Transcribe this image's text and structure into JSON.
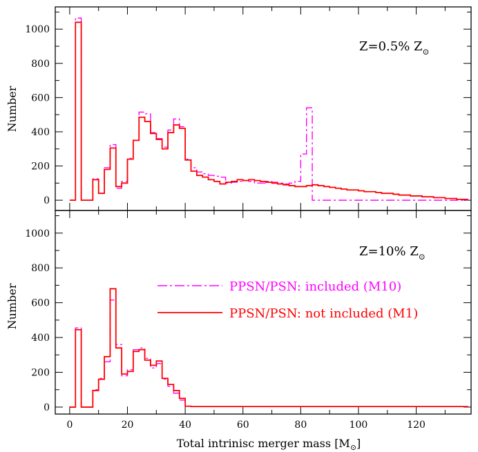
{
  "chart_data": [
    {
      "type": "line",
      "panel": "top",
      "annotation": "Z=0.5% Z⊙",
      "annotation_main": "Z=0.5% Z",
      "annotation_sub": "⊙",
      "ylabel": "Number",
      "xlim": [
        -5,
        139
      ],
      "ylim": [
        -60,
        1130
      ],
      "yticks": [
        0,
        200,
        400,
        600,
        800,
        1000
      ],
      "xticks": [
        0,
        20,
        40,
        60,
        80,
        100,
        120
      ],
      "bin_edges": [
        0,
        2,
        4,
        6,
        8,
        10,
        12,
        14,
        16,
        18,
        20,
        22,
        24,
        26,
        28,
        30,
        32,
        34,
        36,
        38,
        40,
        42,
        44,
        46,
        48,
        50,
        52,
        54,
        56,
        58,
        60,
        62,
        64,
        66,
        68,
        70,
        72,
        74,
        76,
        78,
        80,
        82,
        84,
        86,
        88,
        90,
        92,
        94,
        96,
        98,
        100,
        102,
        104,
        106,
        108,
        110,
        112,
        114,
        116,
        118,
        120,
        122,
        124,
        126,
        128,
        130,
        132,
        134,
        136,
        138
      ],
      "series": [
        {
          "name": "PPSN/PSN: included (M10)",
          "color": "#ff00ff",
          "style": "dashdot",
          "values": [
            0,
            1065,
            0,
            0,
            125,
            40,
            190,
            325,
            70,
            110,
            245,
            350,
            515,
            505,
            395,
            360,
            310,
            410,
            475,
            430,
            240,
            190,
            165,
            155,
            145,
            140,
            135,
            100,
            105,
            110,
            115,
            110,
            100,
            100,
            110,
            105,
            100,
            95,
            100,
            110,
            270,
            540,
            0,
            0,
            0,
            0,
            0,
            0,
            0,
            0,
            0,
            0,
            0,
            0,
            0,
            0,
            0,
            0,
            0,
            0,
            0,
            0,
            0,
            0,
            0,
            0,
            0,
            0,
            0
          ]
        },
        {
          "name": "PPSN/PSN: not included (M1)",
          "color": "#ff0000",
          "style": "solid",
          "values": [
            0,
            1040,
            0,
            0,
            120,
            40,
            180,
            305,
            80,
            100,
            240,
            350,
            485,
            460,
            390,
            355,
            300,
            395,
            440,
            420,
            235,
            170,
            145,
            135,
            120,
            110,
            95,
            105,
            110,
            120,
            115,
            120,
            115,
            110,
            105,
            100,
            95,
            90,
            85,
            80,
            80,
            85,
            90,
            85,
            80,
            75,
            70,
            65,
            60,
            60,
            55,
            50,
            50,
            45,
            40,
            40,
            35,
            30,
            30,
            25,
            25,
            20,
            20,
            15,
            15,
            10,
            10,
            5,
            5
          ]
        }
      ]
    },
    {
      "type": "line",
      "panel": "bottom",
      "annotation": "Z=10% Z⊙",
      "annotation_main": "Z=10% Z",
      "annotation_sub": "⊙",
      "ylabel": "Number",
      "xlabel": "Total intrinisc merger mass [M⊙]",
      "xlabel_main": "Total intrinisc merger mass [M",
      "xlabel_sub": "⊙",
      "xlabel_end": "]",
      "xlim": [
        -5,
        139
      ],
      "ylim": [
        -40,
        1130
      ],
      "yticks": [
        0,
        200,
        400,
        600,
        800,
        1000
      ],
      "xticks": [
        0,
        20,
        40,
        60,
        80,
        100,
        120
      ],
      "bin_edges": [
        0,
        2,
        4,
        6,
        8,
        10,
        12,
        14,
        16,
        18,
        20,
        22,
        24,
        26,
        28,
        30,
        32,
        34,
        36,
        38,
        40,
        42,
        44,
        46,
        48,
        50,
        52,
        54,
        56,
        58,
        60,
        62,
        64,
        66,
        68,
        70,
        72,
        74,
        76,
        78,
        80,
        82,
        84,
        86,
        88,
        90,
        92,
        94,
        96,
        98,
        100,
        102,
        104,
        106,
        108,
        110,
        112,
        114,
        116,
        118,
        120,
        122,
        124,
        126,
        128,
        130,
        132,
        134,
        136,
        138
      ],
      "series": [
        {
          "name": "PPSN/PSN: included (M10)",
          "color": "#ff00ff",
          "style": "dashdot",
          "values": [
            0,
            455,
            0,
            0,
            100,
            165,
            260,
            615,
            360,
            180,
            215,
            330,
            340,
            280,
            225,
            250,
            160,
            120,
            80,
            40,
            5,
            3,
            3,
            3,
            3,
            3,
            3,
            3,
            3,
            3,
            3,
            3,
            3,
            3,
            3,
            3,
            3,
            3,
            3,
            3,
            3,
            3,
            3,
            3,
            3,
            3,
            3,
            3,
            3,
            3,
            3,
            3,
            3,
            3,
            3,
            3,
            3,
            3,
            3,
            3,
            3,
            3,
            3,
            3,
            3,
            3,
            3,
            3,
            3
          ]
        },
        {
          "name": "PPSN/PSN: not included (M1)",
          "color": "#ff0000",
          "style": "solid",
          "values": [
            0,
            445,
            0,
            0,
            95,
            160,
            290,
            680,
            340,
            190,
            205,
            320,
            330,
            270,
            240,
            265,
            165,
            130,
            95,
            50,
            5,
            3,
            3,
            3,
            3,
            3,
            3,
            3,
            3,
            3,
            3,
            3,
            3,
            3,
            3,
            3,
            3,
            3,
            3,
            3,
            3,
            3,
            3,
            3,
            3,
            3,
            3,
            3,
            3,
            3,
            3,
            3,
            3,
            3,
            3,
            3,
            3,
            3,
            3,
            3,
            3,
            3,
            3,
            3,
            3,
            3,
            3,
            3,
            3
          ]
        }
      ]
    }
  ],
  "legend": [
    {
      "label": "PPSN/PSN: included (M10)",
      "color": "#ff00ff",
      "style": "dashdot"
    },
    {
      "label": "PPSN/PSN: not included (M1)",
      "color": "#ff0000",
      "style": "solid"
    }
  ]
}
